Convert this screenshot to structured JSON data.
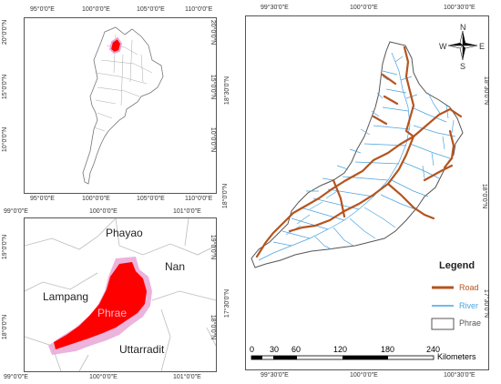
{
  "inset_map": {
    "top_ticks": [
      "95°0'0\"E",
      "100°0'0\"E",
      "105°0'0\"E",
      "110°0'0\"E"
    ],
    "bottom_ticks": [
      "95°0'0\"E",
      "100°0'0\"E",
      "105°0'0\"E",
      "110°0'0\"E"
    ],
    "left_ticks": [
      "20°0'0\"N",
      "15°0'0\"N",
      "10°0'0\"N"
    ],
    "right_ticks": [
      "20°0'0\"N",
      "15°0'0\"N",
      "10°0'0\"N"
    ]
  },
  "province_map": {
    "top_ticks": [
      "99°0'0\"E",
      "100°0'0\"E",
      "101°0'0\"E"
    ],
    "bottom_ticks": [
      "99°0'0\"E",
      "100°0'0\"E",
      "101°0'0\"E"
    ],
    "left_ticks": [
      "19°0'0\"N",
      "18°0'0\"N"
    ],
    "right_ticks": [
      "19°0'0\"N",
      "18°0'0\"N"
    ],
    "places": {
      "phayao": "Phayao",
      "nan": "Nan",
      "lampang": "Lampang",
      "phrae": "Phrae",
      "uttarradit": "Uttarradit"
    }
  },
  "main_map": {
    "top_ticks": [
      "99°30'0\"E",
      "100°0'0\"E",
      "100°30'0\"E"
    ],
    "bottom_ticks": [
      "99°30'0\"E",
      "100°0'0\"E",
      "100°30'0\"E"
    ],
    "left_ticks": [
      "18°30'0\"N",
      "18°0'0\"N",
      "17°30'0\"N"
    ],
    "right_ticks": [
      "18°30'0\"N",
      "18°0'0\"N",
      "17°30'0\"N"
    ],
    "compass": {
      "n": "N",
      "s": "S",
      "e": "E",
      "w": "W"
    },
    "legend": {
      "title": "Legend",
      "items": [
        {
          "label": "Road",
          "color": "#b5541e"
        },
        {
          "label": "River",
          "color": "#4aa3df"
        },
        {
          "label": "Phrae",
          "color": "#555555"
        }
      ]
    },
    "scalebar": {
      "ticks": [
        "0",
        "30",
        "60",
        "120",
        "180",
        "240"
      ],
      "unit": "Kilometers"
    }
  },
  "colors": {
    "phrae_fill": "#ff0000",
    "buffer_pink": "#e9a6d6",
    "road": "#b5541e",
    "river": "#4aa3df"
  }
}
